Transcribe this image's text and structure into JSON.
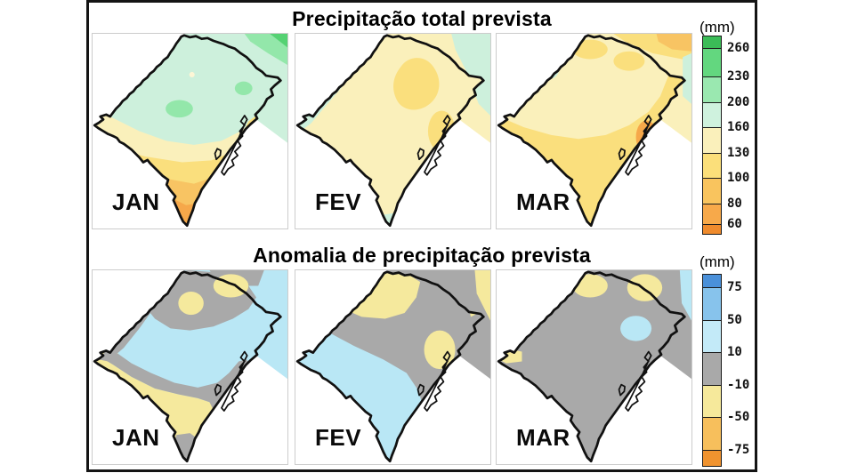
{
  "sections": [
    {
      "id": "total",
      "title": "Precipitação total prevista",
      "unit": "(mm)",
      "panels": [
        {
          "label": "JAN"
        },
        {
          "label": "FEV"
        },
        {
          "label": "MAR"
        }
      ],
      "colorbar": {
        "ticks": [
          "260",
          "230",
          "200",
          "160",
          "130",
          "100",
          "80",
          "60"
        ],
        "colors": [
          "#3bbc57",
          "#63d77f",
          "#9ae8b0",
          "#cff2de",
          "#faf0bb",
          "#fbdf7a",
          "#f9c45e",
          "#f7a94a",
          "#ef8b2d"
        ]
      }
    },
    {
      "id": "anomaly",
      "title": "Anomalia de precipitação prevista",
      "unit": "(mm)",
      "panels": [
        {
          "label": "JAN"
        },
        {
          "label": "FEV"
        },
        {
          "label": "MAR"
        }
      ],
      "colorbar": {
        "ticks": [
          "75",
          "50",
          "10",
          "-10",
          "-50",
          "-75"
        ],
        "colors": [
          "#4a90d9",
          "#87c3ec",
          "#c3eaf8",
          "#a9a9a9",
          "#f6e99b",
          "#f7bf5c",
          "#f0932f"
        ]
      }
    }
  ],
  "map_fill_palette": {
    "mint": "#cdf0dc",
    "cream": "#faf0bb",
    "yellow": "#fadf7d",
    "amber": "#f8c463",
    "orange": "#f6a84a",
    "green": "#93e7aa",
    "green_bright": "#55d273",
    "pale_blue": "#b9e7f5",
    "gray": "#a9a9a9",
    "pale_yellow": "#f5e99d",
    "cream_light": "#fdf6d6",
    "outline": "#111111"
  }
}
